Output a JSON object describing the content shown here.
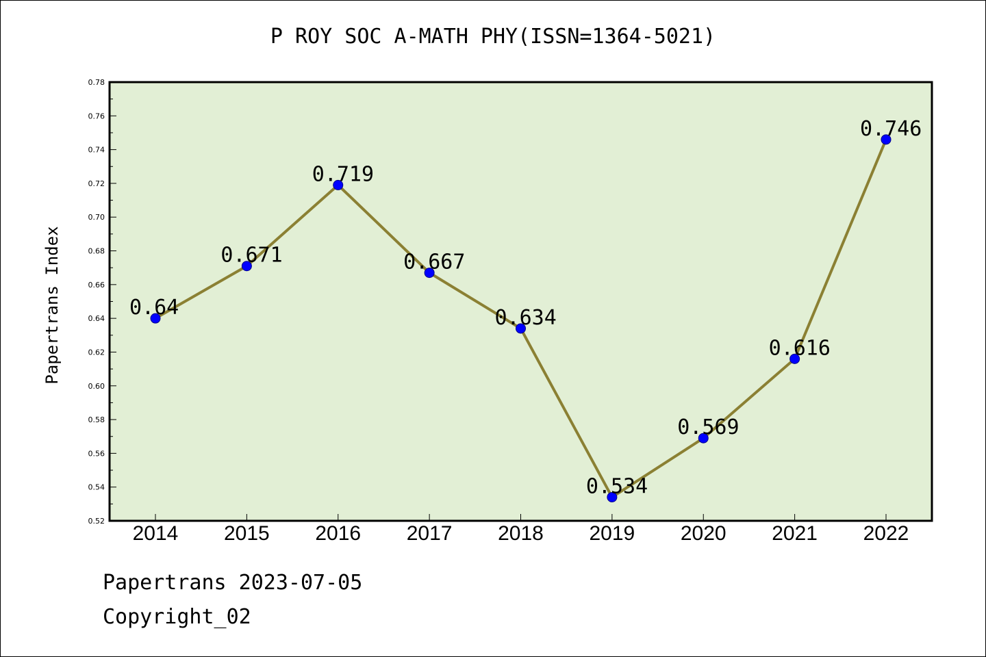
{
  "chart_data": {
    "type": "line",
    "title": "P ROY SOC A-MATH PHY(ISSN=1364-5021)",
    "xlabel": "",
    "ylabel": "Papertrans Index",
    "categories": [
      "2014",
      "2015",
      "2016",
      "2017",
      "2018",
      "2019",
      "2020",
      "2021",
      "2022"
    ],
    "values": [
      0.64,
      0.671,
      0.719,
      0.667,
      0.634,
      0.534,
      0.569,
      0.616,
      0.746
    ],
    "data_labels": [
      "0.64",
      "0.671",
      "0.719",
      "0.667",
      "0.634",
      "0.534",
      "0.569",
      "0.616",
      "0.746"
    ],
    "ylim": [
      0.52,
      0.78
    ],
    "yticks": [
      "0.52",
      "0.54",
      "0.56",
      "0.58",
      "0.60",
      "0.62",
      "0.64",
      "0.66",
      "0.68",
      "0.70",
      "0.72",
      "0.74",
      "0.76",
      "0.78"
    ],
    "grid": false,
    "colors": {
      "plot_background": "#e2efd5",
      "line": "#8b8033",
      "marker": "#0000ff"
    }
  },
  "footer": {
    "line1": "Papertrans 2023-07-05",
    "line2": "Copyright_02"
  }
}
